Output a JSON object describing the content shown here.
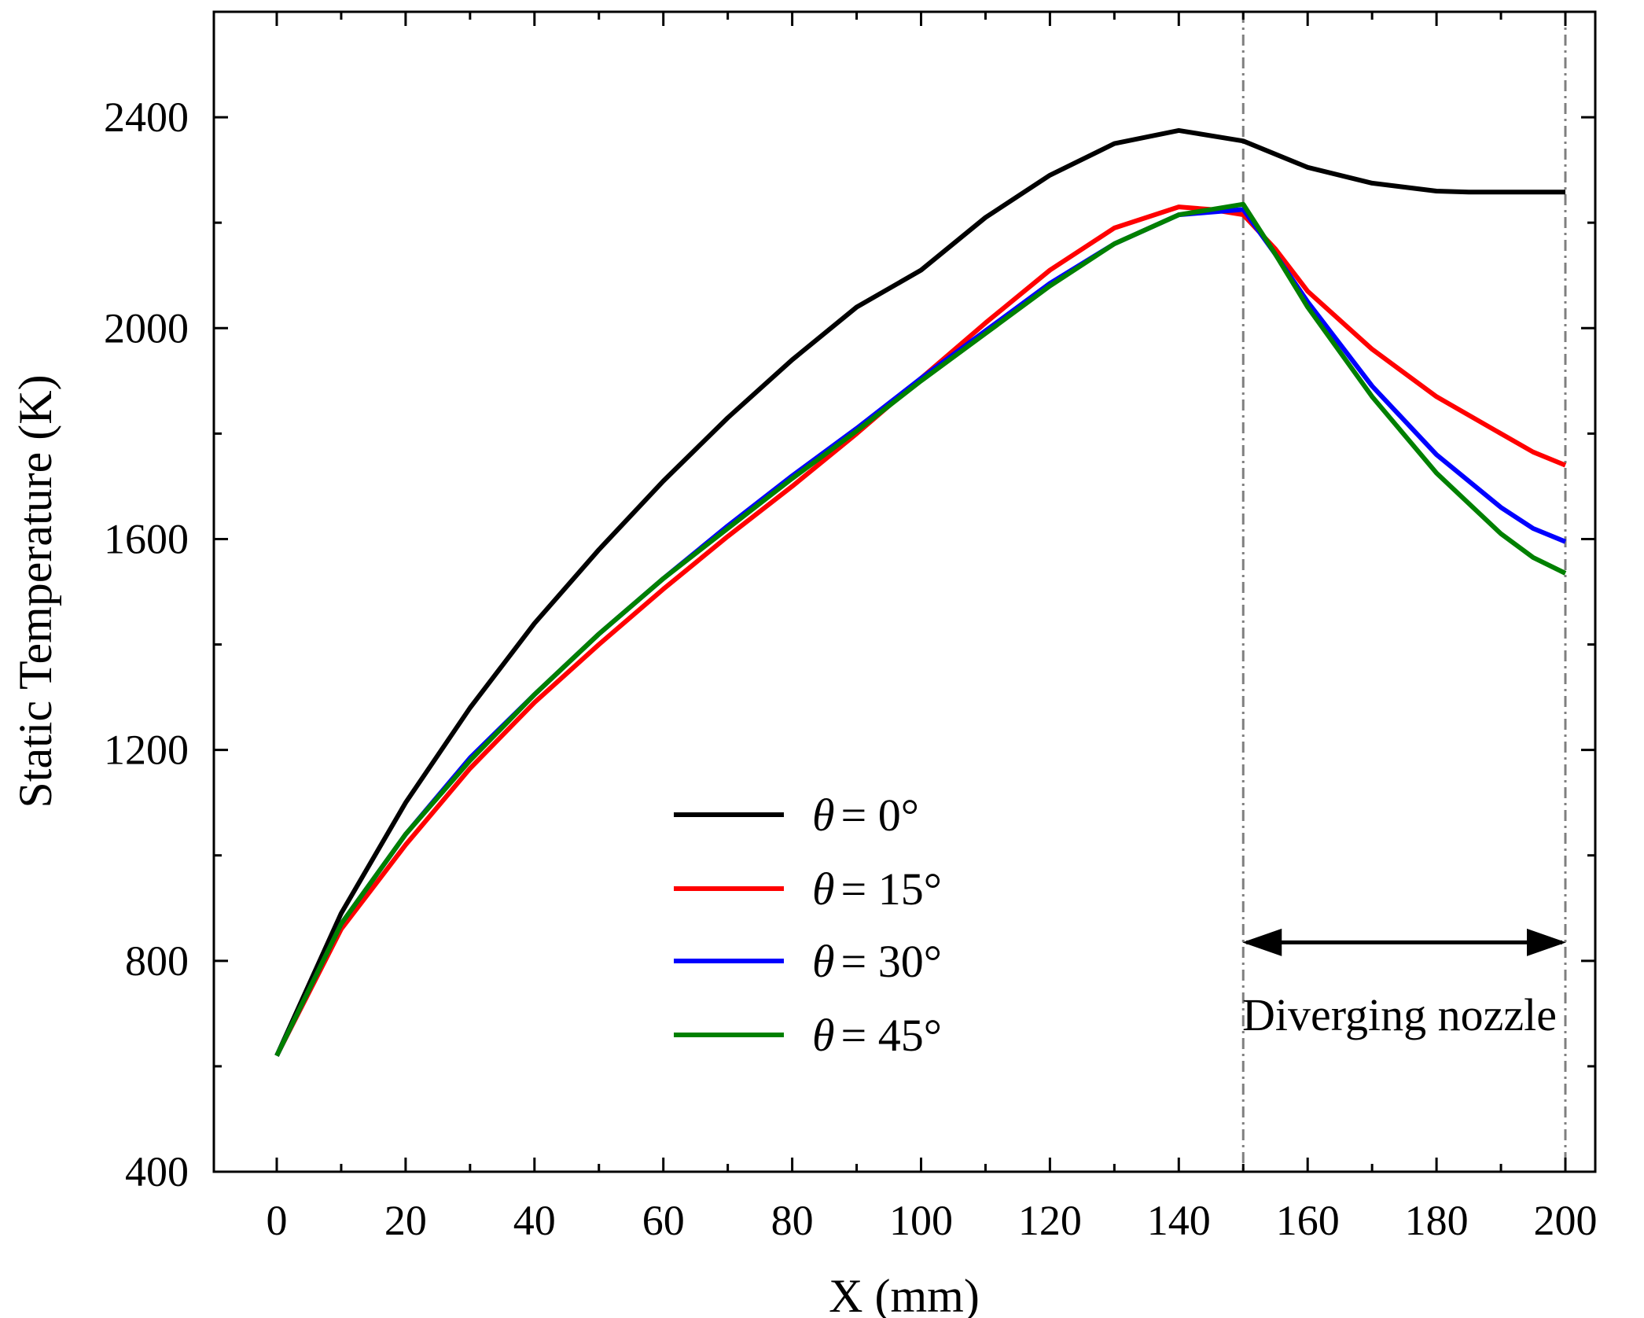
{
  "chart_data": {
    "type": "line",
    "title": "",
    "xlabel": "X (mm)",
    "ylabel": "Static Temperature (K)",
    "xlim": [
      -10,
      210
    ],
    "ylim": [
      400,
      2600
    ],
    "xticks": [
      0,
      20,
      40,
      60,
      80,
      100,
      120,
      140,
      160,
      180,
      200
    ],
    "yticks": [
      400,
      800,
      1200,
      1600,
      2000,
      2400
    ],
    "xtick_labels": [
      "0",
      "20",
      "40",
      "60",
      "80",
      "100",
      "120",
      "140",
      "160",
      "180",
      "200"
    ],
    "ytick_labels": [
      "400",
      "800",
      "1200",
      "1600",
      "2000",
      "2400"
    ],
    "grid": false,
    "legend_position": "lower-center",
    "series": [
      {
        "name": "θ = 0°",
        "symbol": "θ",
        "suffix": "= 0°",
        "color": "#000000",
        "x": [
          0,
          10,
          20,
          30,
          40,
          50,
          60,
          70,
          80,
          90,
          100,
          110,
          120,
          130,
          140,
          150,
          160,
          170,
          180,
          185,
          190,
          200
        ],
        "y": [
          620,
          890,
          1100,
          1280,
          1440,
          1580,
          1710,
          1830,
          1940,
          2040,
          2110,
          2210,
          2290,
          2350,
          2375,
          2355,
          2305,
          2275,
          2260,
          2258,
          2258,
          2258
        ]
      },
      {
        "name": "θ = 15°",
        "symbol": "θ",
        "suffix": "= 15°",
        "color": "#ff0000",
        "x": [
          0,
          10,
          20,
          30,
          40,
          50,
          60,
          70,
          80,
          90,
          100,
          110,
          120,
          130,
          140,
          145,
          150,
          155,
          160,
          170,
          180,
          190,
          195,
          200
        ],
        "y": [
          620,
          860,
          1020,
          1165,
          1290,
          1400,
          1505,
          1605,
          1700,
          1800,
          1905,
          2010,
          2110,
          2190,
          2230,
          2225,
          2215,
          2150,
          2070,
          1960,
          1870,
          1800,
          1765,
          1740
        ]
      },
      {
        "name": "θ = 30°",
        "symbol": "θ",
        "suffix": "= 30°",
        "color": "#0000ff",
        "x": [
          0,
          10,
          20,
          30,
          40,
          50,
          60,
          70,
          80,
          90,
          100,
          110,
          120,
          130,
          140,
          145,
          150,
          155,
          160,
          170,
          180,
          190,
          195,
          200
        ],
        "y": [
          620,
          870,
          1040,
          1185,
          1305,
          1420,
          1525,
          1625,
          1720,
          1810,
          1905,
          1995,
          2085,
          2160,
          2215,
          2220,
          2225,
          2140,
          2050,
          1890,
          1760,
          1660,
          1620,
          1595
        ]
      },
      {
        "name": "θ = 45°",
        "symbol": "θ",
        "suffix": "= 45°",
        "color": "#008000",
        "x": [
          0,
          10,
          20,
          30,
          40,
          50,
          60,
          70,
          80,
          90,
          100,
          110,
          120,
          130,
          140,
          145,
          150,
          155,
          160,
          170,
          180,
          190,
          195,
          200
        ],
        "y": [
          620,
          870,
          1040,
          1180,
          1305,
          1420,
          1525,
          1620,
          1715,
          1805,
          1900,
          1990,
          2080,
          2160,
          2215,
          2225,
          2235,
          2140,
          2040,
          1870,
          1725,
          1610,
          1565,
          1535
        ]
      }
    ],
    "annotations": {
      "diverging_text": "Diverging nozzle",
      "vlines_x": [
        150,
        200
      ],
      "arrow_from_x": 150,
      "arrow_to_x": 200,
      "arrow_y": 835
    }
  }
}
